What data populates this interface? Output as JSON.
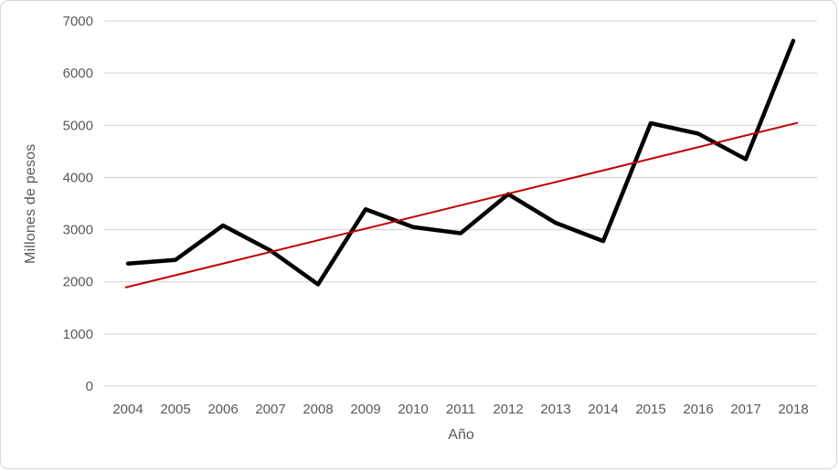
{
  "chart_data": {
    "type": "line",
    "title": "",
    "xlabel": "Año",
    "ylabel": "Millones de pesos",
    "categories": [
      "2004",
      "2005",
      "2006",
      "2007",
      "2008",
      "2009",
      "2010",
      "2011",
      "2012",
      "2013",
      "2014",
      "2015",
      "2016",
      "2017",
      "2018"
    ],
    "series": [
      {
        "name": "Millones de pesos",
        "kind": "data",
        "color": "#000000",
        "stroke_width": 4.5,
        "values": [
          2350,
          2420,
          3080,
          2600,
          1950,
          3390,
          3050,
          2930,
          3680,
          3130,
          2780,
          5040,
          4840,
          4350,
          6620
        ]
      },
      {
        "name": "linear-trendline",
        "kind": "trend",
        "color": "#c00000",
        "stroke_width": 2,
        "trend_start": 1890,
        "trend_end": 5050
      }
    ],
    "ylim": [
      0,
      7000
    ],
    "ytick_step": 1000,
    "grid": true,
    "gridline_color": "#d9d9d9",
    "axis_label_color": "#595959",
    "legend": false
  }
}
